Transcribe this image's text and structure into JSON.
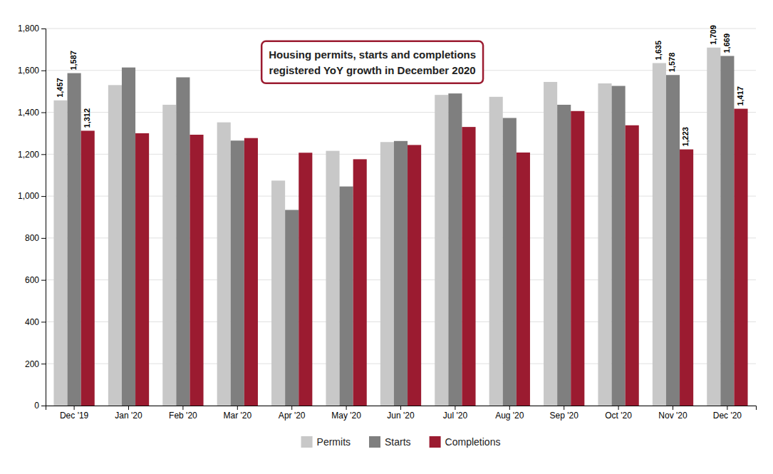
{
  "chart_data": {
    "type": "bar",
    "annotations": [
      "Housing permits, starts and completions",
      "registered YoY growth in December 2020"
    ],
    "categories": [
      "Dec '19",
      "Jan '20",
      "Feb '20",
      "Mar '20",
      "Apr '20",
      "May '20",
      "Jun '20",
      "Jul '20",
      "Aug '20",
      "Sep '20",
      "Oct '20",
      "Nov '20",
      "Dec '20"
    ],
    "series": [
      {
        "name": "Permits",
        "color": "#c8c8c8",
        "values": [
          1457,
          1530,
          1436,
          1352,
          1074,
          1216,
          1258,
          1483,
          1474,
          1545,
          1538,
          1635,
          1709
        ],
        "value_labels": [
          "1,457",
          null,
          null,
          null,
          null,
          null,
          null,
          null,
          null,
          null,
          null,
          "1,635",
          "1,709"
        ]
      },
      {
        "name": "Starts",
        "color": "#7f7f7f",
        "values": [
          1587,
          1614,
          1567,
          1265,
          934,
          1046,
          1263,
          1490,
          1373,
          1436,
          1526,
          1578,
          1669
        ],
        "value_labels": [
          "1,587",
          null,
          null,
          null,
          null,
          null,
          null,
          null,
          null,
          null,
          null,
          "1,578",
          "1,669"
        ]
      },
      {
        "name": "Completions",
        "color": "#9b1b30",
        "values": [
          1312,
          1300,
          1293,
          1277,
          1207,
          1176,
          1244,
          1330,
          1208,
          1406,
          1338,
          1223,
          1417
        ],
        "value_labels": [
          "1,312",
          null,
          null,
          null,
          null,
          null,
          null,
          null,
          null,
          null,
          null,
          "1,223",
          "1,417"
        ]
      }
    ],
    "ylim": [
      0,
      1800
    ],
    "yticks": [
      0,
      200,
      400,
      600,
      800,
      {
        "value": 1000,
        "label": "1,000"
      },
      {
        "value": 1200,
        "label": "1,200"
      },
      {
        "value": 1400,
        "label": "1,400"
      },
      {
        "value": 1600,
        "label": "1,600"
      },
      {
        "value": 1800,
        "label": "1,800"
      }
    ],
    "grid": true,
    "legend": "bottom",
    "data_labels": true
  }
}
